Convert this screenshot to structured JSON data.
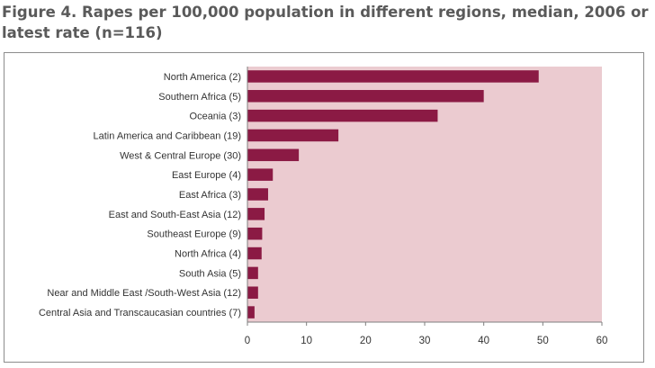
{
  "figure": {
    "title": "Figure 4. Rapes per 100,000 population in different regions, median, 2006 or latest rate (n=116)"
  },
  "colors": {
    "bar": "#8b1a44",
    "plot_background": "#ebcbd0",
    "axis": "#7f7f7f"
  },
  "chart_data": {
    "type": "bar",
    "orientation": "horizontal",
    "categories": [
      "North America (2)",
      "Southern Africa (5)",
      "Oceania (3)",
      "Latin America and Caribbean (19)",
      "West & Central Europe (30)",
      "East Europe (4)",
      "East Africa (3)",
      "East and South-East Asia (12)",
      "Southeast Europe (9)",
      "North Africa (4)",
      "South Asia (5)",
      "Near and Middle East /South-West Asia (12)",
      "Central Asia and Transcaucasian countries (7)"
    ],
    "values": [
      49.3,
      40.0,
      32.2,
      15.4,
      8.7,
      4.3,
      3.5,
      2.9,
      2.5,
      2.4,
      1.8,
      1.8,
      1.2
    ],
    "title": "Figure 4. Rapes per 100,000 population in different regions, median, 2006 or latest rate (n=116)",
    "xlim": [
      0,
      60
    ],
    "xticks": [
      0,
      10,
      20,
      30,
      40,
      50,
      60
    ],
    "grid": false,
    "legend": "none"
  }
}
